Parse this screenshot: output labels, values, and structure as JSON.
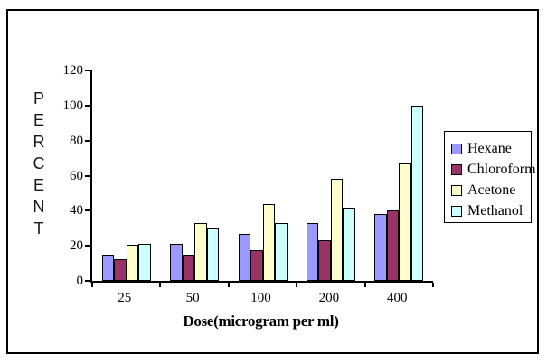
{
  "chart_data": {
    "type": "bar",
    "title": "",
    "xlabel": "Dose(microgram per ml)",
    "ylabel": "PERCENT",
    "categories": [
      "25",
      "50",
      "100",
      "200",
      "400"
    ],
    "series": [
      {
        "name": "Hexane",
        "color": "#9999FF",
        "values": [
          15,
          21,
          27,
          33,
          38
        ]
      },
      {
        "name": "Chloroform",
        "color": "#993366",
        "values": [
          12.5,
          15,
          17.5,
          23,
          40
        ]
      },
      {
        "name": "Acetone",
        "color": "#FFFFCC",
        "values": [
          20.5,
          33,
          44,
          58,
          67
        ]
      },
      {
        "name": "Methanol",
        "color": "#CCFFFF",
        "values": [
          21,
          30,
          33,
          41.5,
          100
        ]
      }
    ],
    "ylim": [
      0,
      120
    ],
    "yticks": [
      0,
      20,
      40,
      60,
      80,
      100,
      120
    ],
    "grid": false,
    "legend_position": "right",
    "bar_border_color": "#000000",
    "axis_color": "#000000",
    "background_color": "#FFFFFF"
  }
}
